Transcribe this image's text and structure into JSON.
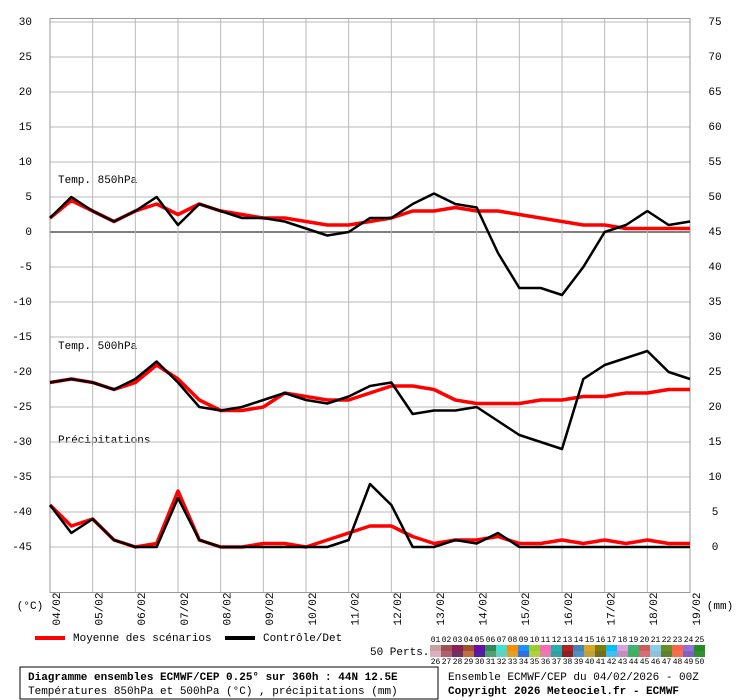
{
  "chart_data": {
    "type": "line",
    "x": [
      0,
      0.5,
      1,
      1.5,
      2,
      2.5,
      3,
      3.5,
      4,
      4.5,
      5,
      5.5,
      6,
      6.5,
      7,
      7.5,
      8,
      8.5,
      9,
      9.5,
      10,
      10.5,
      11,
      11.5,
      12,
      12.5,
      13,
      13.5,
      14,
      14.5,
      15
    ],
    "xlim": [
      0,
      15
    ],
    "xticks": [
      {
        "value": 0,
        "label": "04/02"
      },
      {
        "value": 1,
        "label": "05/02"
      },
      {
        "value": 2,
        "label": "06/02"
      },
      {
        "value": 3,
        "label": "07/02"
      },
      {
        "value": 4,
        "label": "08/02"
      },
      {
        "value": 5,
        "label": "09/02"
      },
      {
        "value": 6,
        "label": "10/02"
      },
      {
        "value": 7,
        "label": "11/02"
      },
      {
        "value": 8,
        "label": "12/02"
      },
      {
        "value": 9,
        "label": "13/02"
      },
      {
        "value": 10,
        "label": "14/02"
      },
      {
        "value": 11,
        "label": "15/02"
      },
      {
        "value": 12,
        "label": "16/02"
      },
      {
        "value": 13,
        "label": "17/02"
      },
      {
        "value": 14,
        "label": "18/02"
      },
      {
        "value": 15,
        "label": "19/02"
      }
    ],
    "ylim": [
      -51.5,
      30.5
    ],
    "yticks": [
      30,
      25,
      20,
      15,
      10,
      5,
      0,
      -5,
      -10,
      -15,
      -20,
      -25,
      -30,
      -35,
      -40,
      -45
    ],
    "y2lim": [
      -6.5,
      75.5
    ],
    "y2ticks": [
      75,
      70,
      65,
      60,
      55,
      50,
      45,
      40,
      35,
      30,
      25,
      20,
      15,
      10,
      5,
      0
    ],
    "ylabel": "(°C)",
    "y2label": "(mm)",
    "grid": true,
    "panel_labels": [
      "Temp. 850hPa",
      "Temp. 500hPa",
      "Précipitations"
    ],
    "series": [
      {
        "name": "Moyenne des scénarios",
        "color": "#ff0000",
        "panels": [
          {
            "values": [
              2,
              4.5,
              3,
              1.5,
              3,
              4,
              2.5,
              4,
              3,
              2.5,
              2,
              2,
              1.5,
              1,
              1,
              1.5,
              2,
              3,
              3,
              3.5,
              3,
              3,
              2.5,
              2,
              1.5,
              1,
              1,
              0.5,
              0.5,
              0.5,
              0.5
            ]
          },
          {
            "values": [
              -21.5,
              -21,
              -21.5,
              -22.5,
              -21.5,
              -19,
              -21,
              -24,
              -25.5,
              -25.5,
              -25,
              -23,
              -23.5,
              -24,
              -24,
              -23,
              -22,
              -22,
              -22.5,
              -24,
              -24.5,
              -24.5,
              -24.5,
              -24,
              -24,
              -23.5,
              -23.5,
              -23,
              -23,
              -22.5,
              -22.5
            ]
          },
          {
            "axis": "y2",
            "values": [
              6,
              3,
              4,
              1,
              0,
              0.5,
              8,
              1,
              0,
              0,
              0.5,
              0.5,
              0,
              1,
              2,
              3,
              3,
              1.5,
              0.5,
              1,
              1,
              1.5,
              0.5,
              0.5,
              1,
              0.5,
              1,
              0.5,
              1,
              0.5,
              0.5
            ]
          }
        ]
      },
      {
        "name": "Contrôle/Det",
        "color": "#000000",
        "panels": [
          {
            "values": [
              2,
              5,
              3,
              1.5,
              3,
              5,
              1,
              4,
              3,
              2,
              2,
              1.5,
              0.5,
              -0.5,
              0,
              2,
              2,
              4,
              5.5,
              4,
              3.5,
              -3,
              -8,
              -8,
              -9,
              -5,
              0,
              1,
              3,
              1,
              1.5
            ]
          },
          {
            "values": [
              -21.5,
              -21,
              -21.5,
              -22.5,
              -21,
              -18.5,
              -21.5,
              -25,
              -25.5,
              -25,
              -24,
              -23,
              -24,
              -24.5,
              -23.5,
              -22,
              -21.5,
              -26,
              -25.5,
              -25.5,
              -25,
              -27,
              -29,
              -30,
              -31,
              -21,
              -19,
              -18,
              -17,
              -20,
              -21
            ]
          },
          {
            "axis": "y2",
            "values": [
              6,
              2,
              4,
              1,
              0,
              0,
              7,
              1,
              0,
              0,
              0,
              0,
              0,
              0,
              1,
              9,
              6,
              0,
              0,
              1,
              0.5,
              2,
              0,
              0,
              0,
              0,
              0,
              0,
              0,
              0,
              0
            ]
          }
        ]
      }
    ],
    "perturbations_label": "50 Perts.",
    "perturbations": [
      {
        "label": "01",
        "color": "#c8a0a0"
      },
      {
        "label": "02",
        "color": "#a05050"
      },
      {
        "label": "03",
        "color": "#8b2252"
      },
      {
        "label": "04",
        "color": "#a0522d"
      },
      {
        "label": "05",
        "color": "#6a0dad"
      },
      {
        "label": "06",
        "color": "#2e8b57"
      },
      {
        "label": "07",
        "color": "#40e0d0"
      },
      {
        "label": "08",
        "color": "#ff8c00"
      },
      {
        "label": "09",
        "color": "#1e90ff"
      },
      {
        "label": "10",
        "color": "#9acd32"
      },
      {
        "label": "11",
        "color": "#ff69b4"
      },
      {
        "label": "12",
        "color": "#20b2aa"
      },
      {
        "label": "13",
        "color": "#b22222"
      },
      {
        "label": "14",
        "color": "#4682b4"
      },
      {
        "label": "15",
        "color": "#daa520"
      },
      {
        "label": "16",
        "color": "#808000"
      },
      {
        "label": "17",
        "color": "#00bfff"
      },
      {
        "label": "18",
        "color": "#dda0dd"
      },
      {
        "label": "19",
        "color": "#3cb371"
      },
      {
        "label": "20",
        "color": "#cd5c5c"
      },
      {
        "label": "21",
        "color": "#87ceeb"
      },
      {
        "label": "22",
        "color": "#6b8e23"
      },
      {
        "label": "23",
        "color": "#ff6347"
      },
      {
        "label": "24",
        "color": "#9370db"
      },
      {
        "label": "25",
        "color": "#228b22"
      },
      {
        "label": "26",
        "color": "#d8b0c0"
      },
      {
        "label": "27",
        "color": "#b06070"
      },
      {
        "label": "28",
        "color": "#703060"
      },
      {
        "label": "29",
        "color": "#c07040"
      },
      {
        "label": "30",
        "color": "#5020a0"
      },
      {
        "label": "31",
        "color": "#50a070"
      },
      {
        "label": "32",
        "color": "#60d0c0"
      },
      {
        "label": "33",
        "color": "#e0a030"
      },
      {
        "label": "34",
        "color": "#3070e0"
      },
      {
        "label": "35",
        "color": "#b0d040"
      },
      {
        "label": "36",
        "color": "#e080b0"
      },
      {
        "label": "37",
        "color": "#30a0a0"
      },
      {
        "label": "38",
        "color": "#902020"
      },
      {
        "label": "39",
        "color": "#5090c0"
      },
      {
        "label": "40",
        "color": "#c0a040"
      },
      {
        "label": "41",
        "color": "#707020"
      },
      {
        "label": "42",
        "color": "#40c0f0"
      },
      {
        "label": "43",
        "color": "#c090c0"
      },
      {
        "label": "44",
        "color": "#40b060"
      },
      {
        "label": "45",
        "color": "#d07070"
      },
      {
        "label": "46",
        "color": "#90c0e0"
      },
      {
        "label": "47",
        "color": "#608030"
      },
      {
        "label": "48",
        "color": "#f07050"
      },
      {
        "label": "49",
        "color": "#8060c0"
      },
      {
        "label": "50",
        "color": "#309030"
      }
    ],
    "title": "Diagramme ensembles ECMWF/CEP 0.25° sur 360h : 44N 12.5E",
    "subtitle": "Températures 850hPa et 500hPa (°C) , précipitations (mm)",
    "run_info": "Ensemble ECMWF/CEP du 04/02/2026 - 00Z",
    "copyright": "Copyright 2026 Meteociel.fr - ECMWF"
  }
}
